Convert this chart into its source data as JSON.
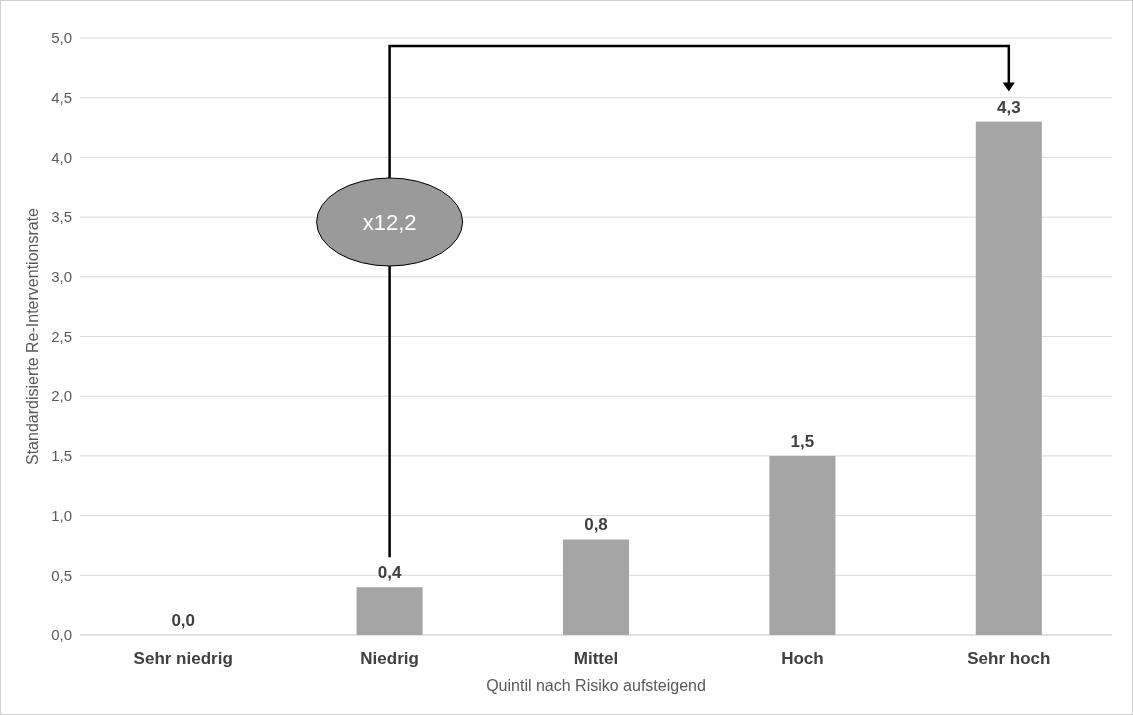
{
  "chart_data": {
    "type": "bar",
    "categories": [
      "Sehr niedrig",
      "Niedrig",
      "Mittel",
      "Hoch",
      "Sehr hoch"
    ],
    "values": [
      0.0,
      0.4,
      0.8,
      1.5,
      4.3
    ],
    "value_labels": [
      "0,0",
      "0,4",
      "0,8",
      "1,5",
      "4,3"
    ],
    "color": "#a5a5a5",
    "xlabel": "Quintil nach Risiko aufsteigend",
    "ylabel": "Standardisierte Re-Interventionsrate",
    "ylim": [
      0,
      5
    ],
    "yticks": [
      {
        "value": 0,
        "label": "0,0"
      },
      {
        "value": 0.5,
        "label": "0,5"
      },
      {
        "value": 1,
        "label": "1,0"
      },
      {
        "value": 1.5,
        "label": "1,5"
      },
      {
        "value": 2,
        "label": "2,0"
      },
      {
        "value": 2.5,
        "label": "2,5"
      },
      {
        "value": 3,
        "label": "3,0"
      },
      {
        "value": 3.5,
        "label": "3,5"
      },
      {
        "value": 4,
        "label": "4,0"
      },
      {
        "value": 4.5,
        "label": "4,5"
      },
      {
        "value": 5,
        "label": "5,0"
      }
    ],
    "grid": "y",
    "annotations": [
      "x12,2"
    ]
  }
}
